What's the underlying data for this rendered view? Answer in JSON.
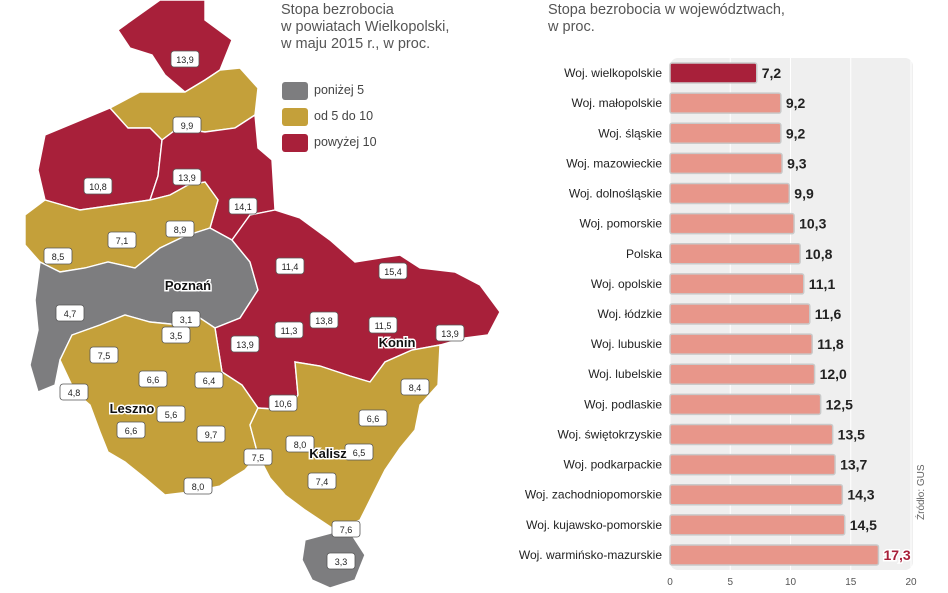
{
  "map": {
    "title_lines": [
      "Stopa bezrobocia",
      "w powiatach Wielkopolski,",
      "w maju 2015 r., w proc."
    ],
    "legend": [
      {
        "label": "poniżej 5",
        "color": "#7d7d7f"
      },
      {
        "label": "od 5 do 10",
        "color": "#c4a03a"
      },
      {
        "label": "powyżej 10",
        "color": "#a8203a"
      }
    ],
    "city_labels": [
      "Poznań",
      "Leszno",
      "Kalisz",
      "Konin"
    ],
    "district_values": [
      "13,9",
      "9,9",
      "13,9",
      "10,8",
      "14,1",
      "7,1",
      "8,9",
      "8,5",
      "11,4",
      "15,4",
      "3,1",
      "4,7",
      "3,5",
      "11,3",
      "13,8",
      "11,5",
      "13,9",
      "13,9",
      "7,5",
      "6,6",
      "6,4",
      "4,8",
      "10,6",
      "8,4",
      "5,6",
      "6,6",
      "9,7",
      "8,0",
      "6,6",
      "7,5",
      "6,5",
      "7,4",
      "8,0",
      "7,6",
      "3,3"
    ]
  },
  "chart_data": {
    "type": "bar",
    "orientation": "horizontal",
    "title": "Stopa bezrobocia w województwach, w proc.",
    "title_lines": [
      "Stopa bezrobocia w województwach,",
      "w proc."
    ],
    "categories": [
      "Woj. wielkopolskie",
      "Woj. małopolskie",
      "Woj. śląskie",
      "Woj. mazowieckie",
      "Woj. dolnośląskie",
      "Woj. pomorskie",
      "Polska",
      "Woj. opolskie",
      "Woj. łódzkie",
      "Woj. lubuskie",
      "Woj. lubelskie",
      "Woj. podlaskie",
      "Woj. świętokrzyskie",
      "Woj. podkarpackie",
      "Woj. zachodniopomorskie",
      "Woj. kujawsko-pomorskie",
      "Woj. warmińsko-mazurskie"
    ],
    "values": [
      7.2,
      9.2,
      9.2,
      9.3,
      9.9,
      10.3,
      10.8,
      11.1,
      11.6,
      11.8,
      12.0,
      12.5,
      13.5,
      13.7,
      14.3,
      14.5,
      17.3
    ],
    "value_labels": [
      "7,2",
      "9,2",
      "9,2",
      "9,3",
      "9,9",
      "10,3",
      "10,8",
      "11,1",
      "11,6",
      "11,8",
      "12,0",
      "12,5",
      "13,5",
      "13,7",
      "14,3",
      "14,5",
      "17,3"
    ],
    "xlim": [
      0,
      20
    ],
    "xticks": [
      "0",
      "5",
      "10",
      "15",
      "20"
    ],
    "highlight_index": 0,
    "colors": {
      "highlight": "#a8203a",
      "bar": "#e8968a",
      "bar_edge": "#c9c9c9",
      "last_label": "#a8203a",
      "label": "#222222"
    },
    "source": "Źródło: GUS"
  }
}
